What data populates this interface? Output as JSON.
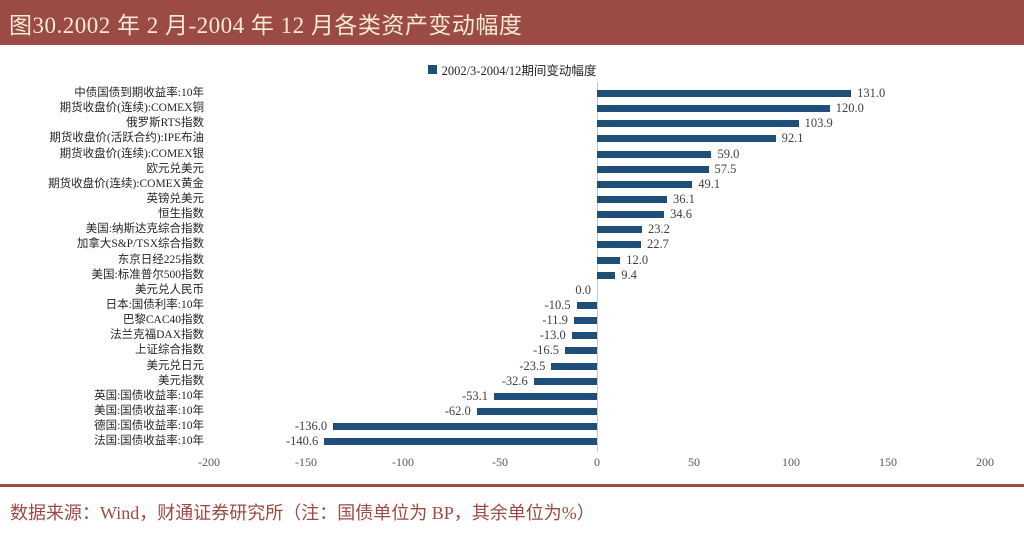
{
  "header": {
    "title": "图30.2002 年 2 月-2004 年 12 月各类资产变动幅度"
  },
  "footer": {
    "source": "数据来源：Wind，财通证券研究所（注：国债单位为 BP，其余单位为%）"
  },
  "colors": {
    "header_bg": "#9C4B44",
    "header_text": "#F3E9D7",
    "bar": "#1F4E79",
    "value_label": "#404040",
    "axis_label": "#595959",
    "zero_line": "#C9C9C9",
    "footer": "#9C4B44"
  },
  "chart_data": {
    "type": "bar",
    "orientation": "horizontal",
    "title": "图30.2002 年 2 月-2004 年 12 月各类资产变动幅度",
    "series_name": "2002/3-2004/12期间变动幅度",
    "legend_position": "top",
    "grid": false,
    "xlim": [
      -200,
      200
    ],
    "x_ticks": [
      "-200",
      "-150",
      "-100",
      "-50",
      "0",
      "50",
      "100",
      "150",
      "200"
    ],
    "categories": [
      "中债国债到期收益率:10年",
      "期货收盘价(连续):COMEX铜",
      "俄罗斯RTS指数",
      "期货收盘价(活跃合约):IPE布油",
      "期货收盘价(连续):COMEX银",
      "欧元兑美元",
      "期货收盘价(连续):COMEX黄金",
      "英镑兑美元",
      "恒生指数",
      "美国:纳斯达克综合指数",
      "加拿大S&P/TSX综合指数",
      "东京日经225指数",
      "美国:标准普尔500指数",
      "美元兑人民币",
      "日本:国债利率:10年",
      "巴黎CAC40指数",
      "法兰克福DAX指数",
      "上证综合指数",
      "美元兑日元",
      "美元指数",
      "英国:国债收益率:10年",
      "美国:国债收益率:10年",
      "德国:国债收益率:10年",
      "法国:国债收益率:10年"
    ],
    "values": [
      131.0,
      120.0,
      103.9,
      92.1,
      59.0,
      57.5,
      49.1,
      36.1,
      34.6,
      23.2,
      22.7,
      12.0,
      9.4,
      0.0,
      -10.5,
      -11.9,
      -13.0,
      -16.5,
      -23.5,
      -32.6,
      -53.1,
      -62.0,
      -136.0,
      -140.6
    ],
    "value_labels": [
      "131.0",
      "120.0",
      "103.9",
      "92.1",
      "59.0",
      "57.5",
      "49.1",
      "36.1",
      "34.6",
      "23.2",
      "22.7",
      "12.0",
      "9.4",
      "0.0",
      "-10.5",
      "-11.9",
      "-13.0",
      "-16.5",
      "-23.5",
      "-32.6",
      "-53.1",
      "-62.0",
      "-136.0",
      "-140.6"
    ]
  }
}
